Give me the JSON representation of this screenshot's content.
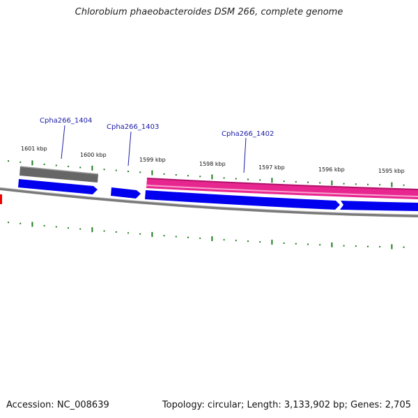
{
  "title": "Chlorobium phaeobacteroides DSM 266, complete genome",
  "footer": {
    "accession": "Accession: NC_008639",
    "summary": "Topology: circular; Length: 3,133,902 bp; Genes: 2,705"
  },
  "genome_map": {
    "ticks": [
      "1601 kbp",
      "1600 kbp",
      "1599 kbp",
      "1598 kbp",
      "1597 kbp",
      "1596 kbp",
      "1595 kbp"
    ],
    "gene_labels": [
      "Cpha266_1404",
      "Cpha266_1403",
      "Cpha266_1402"
    ],
    "colors": {
      "cds": "#0000ee",
      "gray_feature": "#666666",
      "pink_feature": "#e8268f",
      "tick": "#1f7a1f",
      "backbone": "#7a7a7a",
      "label": "#1a1aa8",
      "red_feature": "#ee0000"
    }
  }
}
